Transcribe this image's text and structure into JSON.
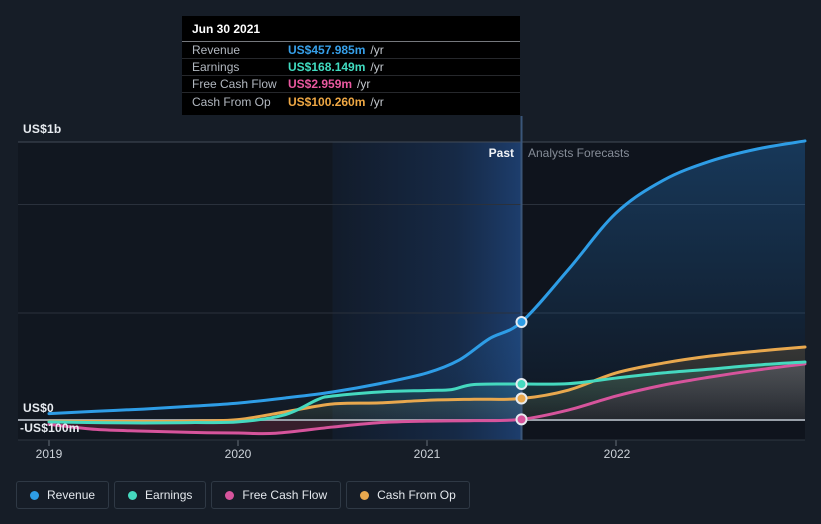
{
  "tooltip": {
    "date": "Jun 30 2021",
    "rows": [
      {
        "label": "Revenue",
        "value": "US$457.985m",
        "suffix": "/yr",
        "color": "#36a0ea"
      },
      {
        "label": "Earnings",
        "value": "US$168.149m",
        "suffix": "/yr",
        "color": "#41dcc1"
      },
      {
        "label": "Free Cash Flow",
        "value": "US$2.959m",
        "suffix": "/yr",
        "color": "#ea58a0"
      },
      {
        "label": "Cash From Op",
        "value": "US$100.260m",
        "suffix": "/yr",
        "color": "#efa844"
      }
    ]
  },
  "legend": {
    "items": [
      {
        "label": "Revenue",
        "color": "#2e9de6"
      },
      {
        "label": "Earnings",
        "color": "#45d9bf"
      },
      {
        "label": "Free Cash Flow",
        "color": "#d6549c"
      },
      {
        "label": "Cash From Op",
        "color": "#e8a84e"
      }
    ]
  },
  "chart_data": {
    "type": "line",
    "title": "",
    "y_unit": "US$ millions per year",
    "y_axis_labels": {
      "top": "US$1b",
      "zero": "US$0",
      "below_zero": "-US$100m"
    },
    "x_tick_labels": [
      "2019",
      "2020",
      "2021",
      "2022"
    ],
    "x_range": [
      2019,
      2023
    ],
    "regions": {
      "past_label": "Past",
      "forecast_label": "Analysts Forecasts"
    },
    "divider_x": 2021.5,
    "highlight_band_x": [
      2020.5,
      2021.5
    ],
    "legend_position": "bottom",
    "grid": true,
    "selected_point": {
      "date": "Jun 30 2021",
      "x": 2021.5,
      "values": {
        "Revenue": 457.985,
        "Earnings": 168.149,
        "Free Cash Flow": 2.959,
        "Cash From Op": 100.26
      }
    },
    "series": [
      {
        "name": "Revenue",
        "color": "#2e9de6",
        "points": [
          [
            2019,
            30
          ],
          [
            2019.25,
            41
          ],
          [
            2019.5,
            51
          ],
          [
            2019.75,
            64
          ],
          [
            2020,
            79
          ],
          [
            2020.25,
            103
          ],
          [
            2020.5,
            131
          ],
          [
            2020.75,
            170
          ],
          [
            2021,
            220
          ],
          [
            2021.17,
            280
          ],
          [
            2021.33,
            380
          ],
          [
            2021.5,
            457.985
          ],
          [
            2021.75,
            705
          ],
          [
            2022,
            967
          ],
          [
            2022.25,
            1120
          ],
          [
            2022.5,
            1210
          ],
          [
            2022.75,
            1267
          ],
          [
            2023,
            1304
          ]
        ]
      },
      {
        "name": "Earnings",
        "color": "#45d9bf",
        "points": [
          [
            2019,
            -9
          ],
          [
            2019.25,
            -12
          ],
          [
            2019.5,
            -14
          ],
          [
            2019.75,
            -12
          ],
          [
            2020,
            -9
          ],
          [
            2020.25,
            25
          ],
          [
            2020.42,
            95
          ],
          [
            2020.5,
            112
          ],
          [
            2020.75,
            131
          ],
          [
            2021,
            138
          ],
          [
            2021.13,
            142
          ],
          [
            2021.25,
            166
          ],
          [
            2021.5,
            168.149
          ],
          [
            2021.75,
            170
          ],
          [
            2022,
            196
          ],
          [
            2022.25,
            220
          ],
          [
            2022.5,
            238
          ],
          [
            2022.75,
            257
          ],
          [
            2023,
            271
          ]
        ]
      },
      {
        "name": "Free Cash Flow",
        "color": "#d6549c",
        "points": [
          [
            2019,
            -20
          ],
          [
            2019.25,
            -44
          ],
          [
            2019.5,
            -52
          ],
          [
            2019.75,
            -58
          ],
          [
            2020,
            -61
          ],
          [
            2020.2,
            -62
          ],
          [
            2020.5,
            -33
          ],
          [
            2020.75,
            -12
          ],
          [
            2021,
            -5
          ],
          [
            2021.25,
            -3
          ],
          [
            2021.5,
            2.959
          ],
          [
            2021.75,
            47
          ],
          [
            2022,
            112
          ],
          [
            2022.25,
            163
          ],
          [
            2022.5,
            201
          ],
          [
            2022.75,
            234
          ],
          [
            2023,
            262
          ]
        ]
      },
      {
        "name": "Cash From Op",
        "color": "#e8a84e",
        "points": [
          [
            2019,
            -6
          ],
          [
            2019.25,
            -7
          ],
          [
            2019.5,
            -7
          ],
          [
            2019.75,
            -5
          ],
          [
            2020,
            2
          ],
          [
            2020.25,
            38
          ],
          [
            2020.5,
            75
          ],
          [
            2020.75,
            80
          ],
          [
            2021,
            92
          ],
          [
            2021.25,
            97
          ],
          [
            2021.5,
            100.26
          ],
          [
            2021.75,
            140
          ],
          [
            2022,
            220
          ],
          [
            2022.25,
            266
          ],
          [
            2022.5,
            299
          ],
          [
            2022.75,
            322
          ],
          [
            2023,
            341
          ]
        ]
      }
    ]
  }
}
